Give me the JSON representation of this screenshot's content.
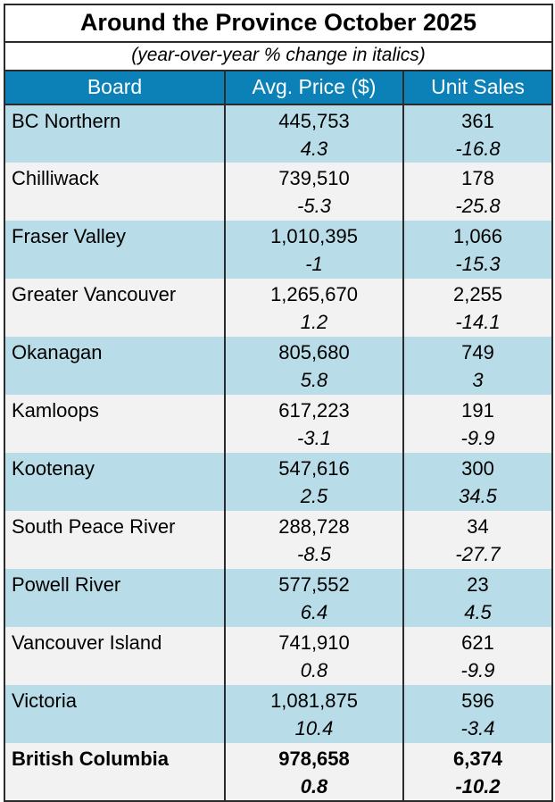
{
  "title": "Around the Province October 2025",
  "subtitle": "(year-over-year % change in italics)",
  "columns": [
    "Board",
    "Avg. Price ($)",
    "Unit Sales"
  ],
  "colors": {
    "header_bg": "#0c81b8",
    "header_text": "#ffffff",
    "row_light_blue": "#b8dde8",
    "row_off_white": "#f2f2f2",
    "border": "#2b2b2b"
  },
  "rows": [
    {
      "board": "BC Northern",
      "avg_price": "445,753",
      "avg_price_yoy": "4.3",
      "unit_sales": "361",
      "unit_sales_yoy": "-16.8",
      "bold": false
    },
    {
      "board": "Chilliwack",
      "avg_price": "739,510",
      "avg_price_yoy": "-5.3",
      "unit_sales": "178",
      "unit_sales_yoy": "-25.8",
      "bold": false
    },
    {
      "board": "Fraser Valley",
      "avg_price": "1,010,395",
      "avg_price_yoy": "-1",
      "unit_sales": "1,066",
      "unit_sales_yoy": "-15.3",
      "bold": false
    },
    {
      "board": "Greater Vancouver",
      "avg_price": "1,265,670",
      "avg_price_yoy": "1.2",
      "unit_sales": "2,255",
      "unit_sales_yoy": "-14.1",
      "bold": false
    },
    {
      "board": "Okanagan",
      "avg_price": "805,680",
      "avg_price_yoy": "5.8",
      "unit_sales": "749",
      "unit_sales_yoy": "3",
      "bold": false
    },
    {
      "board": "Kamloops",
      "avg_price": "617,223",
      "avg_price_yoy": "-3.1",
      "unit_sales": "191",
      "unit_sales_yoy": "-9.9",
      "bold": false
    },
    {
      "board": "Kootenay",
      "avg_price": "547,616",
      "avg_price_yoy": "2.5",
      "unit_sales": "300",
      "unit_sales_yoy": "34.5",
      "bold": false
    },
    {
      "board": "South Peace River",
      "avg_price": "288,728",
      "avg_price_yoy": "-8.5",
      "unit_sales": "34",
      "unit_sales_yoy": "-27.7",
      "bold": false
    },
    {
      "board": "Powell River",
      "avg_price": "577,552",
      "avg_price_yoy": "6.4",
      "unit_sales": "23",
      "unit_sales_yoy": "4.5",
      "bold": false
    },
    {
      "board": "Vancouver Island",
      "avg_price": "741,910",
      "avg_price_yoy": "0.8",
      "unit_sales": "621",
      "unit_sales_yoy": "-9.9",
      "bold": false
    },
    {
      "board": "Victoria",
      "avg_price": "1,081,875",
      "avg_price_yoy": "10.4",
      "unit_sales": "596",
      "unit_sales_yoy": "-3.4",
      "bold": false
    },
    {
      "board": "British Columbia",
      "avg_price": "978,658",
      "avg_price_yoy": "0.8",
      "unit_sales": "6,374",
      "unit_sales_yoy": "-10.2",
      "bold": true
    }
  ],
  "chart_data": {
    "type": "table",
    "title": "Around the Province October 2025",
    "subtitle": "(year-over-year % change in italics)",
    "columns": [
      "Board",
      "Avg. Price ($)",
      "Avg. Price YoY % change",
      "Unit Sales",
      "Unit Sales YoY % change"
    ],
    "rows": [
      [
        "BC Northern",
        445753,
        4.3,
        361,
        -16.8
      ],
      [
        "Chilliwack",
        739510,
        -5.3,
        178,
        -25.8
      ],
      [
        "Fraser Valley",
        1010395,
        -1,
        1066,
        -15.3
      ],
      [
        "Greater Vancouver",
        1265670,
        1.2,
        2255,
        -14.1
      ],
      [
        "Okanagan",
        805680,
        5.8,
        749,
        3
      ],
      [
        "Kamloops",
        617223,
        -3.1,
        191,
        -9.9
      ],
      [
        "Kootenay",
        547616,
        2.5,
        300,
        34.5
      ],
      [
        "South Peace River",
        288728,
        -8.5,
        34,
        -27.7
      ],
      [
        "Powell River",
        577552,
        6.4,
        23,
        4.5
      ],
      [
        "Vancouver Island",
        741910,
        0.8,
        621,
        -9.9
      ],
      [
        "Victoria",
        1081875,
        10.4,
        596,
        -3.4
      ],
      [
        "British Columbia",
        978658,
        0.8,
        6374,
        -10.2
      ]
    ]
  }
}
